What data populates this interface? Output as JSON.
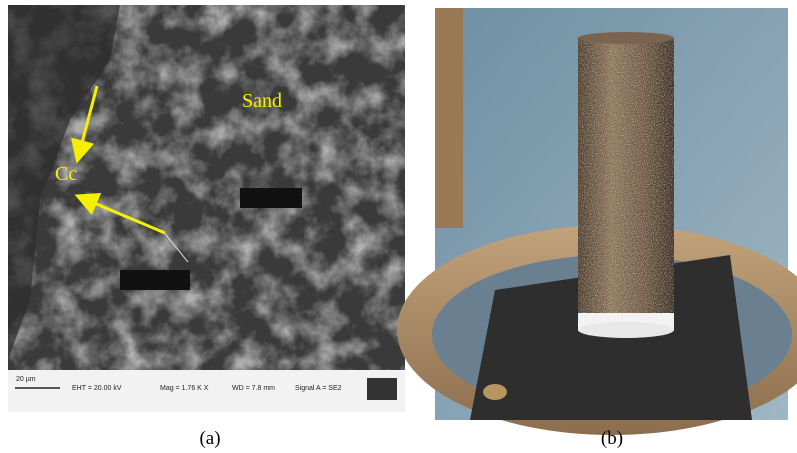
{
  "panel_a": {
    "labels": {
      "sand": "Sand",
      "cc": "Cc"
    },
    "scale_bar": {
      "length": "20 µm",
      "eht": "EHT = 20.00 kV",
      "mag": "Mag = 1.76 K X",
      "wd": "WD = 7.8 mm",
      "signal": "Signal A = SE2"
    },
    "caption": "(a)"
  },
  "panel_b": {
    "caption": "(b)"
  }
}
